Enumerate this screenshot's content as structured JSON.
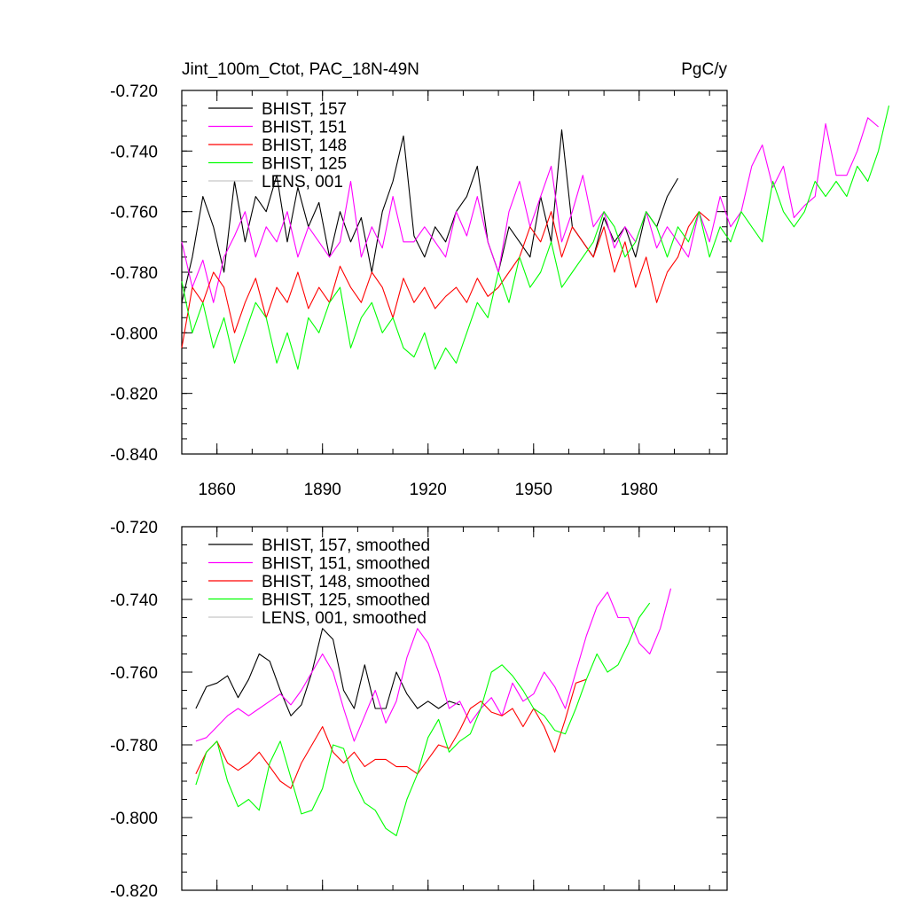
{
  "chart_data": [
    {
      "type": "line",
      "title_left": "Jint_100m_Ctot, PAC_18N-49N",
      "title_right": "PgC/y",
      "xlim": [
        1850,
        2005
      ],
      "ylim": [
        -0.84,
        -0.72
      ],
      "x_ticks": [
        1860,
        1890,
        1920,
        1950,
        1980
      ],
      "y_ticks": [
        -0.84,
        -0.82,
        -0.8,
        -0.78,
        -0.76,
        -0.74,
        -0.72
      ],
      "y_tick_labels": [
        "-0.840",
        "-0.820",
        "-0.800",
        "-0.780",
        "-0.760",
        "-0.740",
        "-0.720"
      ],
      "legend_position": "top-left",
      "series": [
        {
          "name": "BHIST, 157",
          "color": "#000000",
          "x_start": 1850,
          "x_step": 3,
          "values": [
            -0.79,
            -0.775,
            -0.755,
            -0.765,
            -0.78,
            -0.75,
            -0.77,
            -0.755,
            -0.76,
            -0.748,
            -0.77,
            -0.752,
            -0.765,
            -0.757,
            -0.775,
            -0.76,
            -0.77,
            -0.762,
            -0.78,
            -0.76,
            -0.75,
            -0.735,
            -0.768,
            -0.775,
            -0.765,
            -0.77,
            -0.76,
            -0.755,
            -0.745,
            -0.77,
            -0.78,
            -0.765,
            -0.77,
            -0.775,
            -0.755,
            -0.77,
            -0.733,
            -0.765,
            -0.77,
            -0.775,
            -0.762,
            -0.77,
            -0.765,
            -0.775,
            -0.76,
            -0.765,
            -0.755,
            -0.749
          ]
        },
        {
          "name": "BHIST, 151",
          "color": "#ff00ff",
          "x_start": 1850,
          "x_step": 3,
          "values": [
            -0.77,
            -0.785,
            -0.776,
            -0.79,
            -0.775,
            -0.768,
            -0.76,
            -0.775,
            -0.765,
            -0.77,
            -0.76,
            -0.775,
            -0.765,
            -0.77,
            -0.775,
            -0.77,
            -0.75,
            -0.775,
            -0.765,
            -0.772,
            -0.755,
            -0.77,
            -0.77,
            -0.765,
            -0.77,
            -0.775,
            -0.76,
            -0.768,
            -0.755,
            -0.77,
            -0.78,
            -0.76,
            -0.75,
            -0.765,
            -0.755,
            -0.745,
            -0.77,
            -0.76,
            -0.748,
            -0.765,
            -0.76,
            -0.772,
            -0.765,
            -0.77,
            -0.76,
            -0.772,
            -0.765,
            -0.77,
            -0.775,
            -0.76,
            -0.77,
            -0.755,
            -0.765,
            -0.76,
            -0.745,
            -0.738,
            -0.752,
            -0.745,
            -0.762,
            -0.758,
            -0.755,
            -0.731,
            -0.748,
            -0.748,
            -0.74,
            -0.729,
            -0.732
          ]
        },
        {
          "name": "BHIST, 148",
          "color": "#ff0000",
          "x_start": 1850,
          "x_step": 3,
          "values": [
            -0.805,
            -0.785,
            -0.79,
            -0.78,
            -0.785,
            -0.8,
            -0.79,
            -0.782,
            -0.795,
            -0.785,
            -0.79,
            -0.78,
            -0.792,
            -0.785,
            -0.79,
            -0.778,
            -0.785,
            -0.79,
            -0.78,
            -0.785,
            -0.795,
            -0.782,
            -0.79,
            -0.785,
            -0.792,
            -0.788,
            -0.785,
            -0.79,
            -0.782,
            -0.788,
            -0.785,
            -0.78,
            -0.775,
            -0.765,
            -0.77,
            -0.76,
            -0.775,
            -0.765,
            -0.77,
            -0.775,
            -0.765,
            -0.78,
            -0.77,
            -0.785,
            -0.775,
            -0.79,
            -0.78,
            -0.775,
            -0.765,
            -0.76,
            -0.763
          ]
        },
        {
          "name": "BHIST, 125",
          "color": "#00ff00",
          "x_start": 1850,
          "x_step": 3,
          "values": [
            -0.783,
            -0.8,
            -0.79,
            -0.805,
            -0.795,
            -0.81,
            -0.8,
            -0.79,
            -0.795,
            -0.81,
            -0.8,
            -0.812,
            -0.795,
            -0.8,
            -0.79,
            -0.785,
            -0.805,
            -0.795,
            -0.79,
            -0.8,
            -0.795,
            -0.805,
            -0.808,
            -0.8,
            -0.812,
            -0.805,
            -0.81,
            -0.8,
            -0.79,
            -0.795,
            -0.78,
            -0.79,
            -0.775,
            -0.785,
            -0.78,
            -0.77,
            -0.785,
            -0.78,
            -0.775,
            -0.77,
            -0.76,
            -0.765,
            -0.775,
            -0.77,
            -0.76,
            -0.765,
            -0.775,
            -0.765,
            -0.77,
            -0.76,
            -0.775,
            -0.765,
            -0.77,
            -0.76,
            -0.765,
            -0.77,
            -0.75,
            -0.76,
            -0.765,
            -0.76,
            -0.75,
            -0.755,
            -0.75,
            -0.755,
            -0.745,
            -0.75,
            -0.74,
            -0.725
          ]
        },
        {
          "name": "LENS, 001",
          "color": "#c8c8c8",
          "x_start": 1850,
          "x_step": 3,
          "values": []
        }
      ]
    },
    {
      "type": "line",
      "xlim": [
        1850,
        2005
      ],
      "ylim": [
        -0.82,
        -0.72
      ],
      "x_ticks": [
        1860,
        1890,
        1920,
        1950,
        1980
      ],
      "y_ticks": [
        -0.82,
        -0.8,
        -0.78,
        -0.76,
        -0.74,
        -0.72
      ],
      "y_tick_labels": [
        "-0.820",
        "-0.800",
        "-0.780",
        "-0.760",
        "-0.740",
        "-0.720"
      ],
      "legend_position": "top-left",
      "series": [
        {
          "name": "BHIST, 157, smoothed",
          "color": "#000000",
          "x_start": 1854,
          "x_step": 3,
          "values": [
            -0.77,
            -0.764,
            -0.763,
            -0.761,
            -0.767,
            -0.762,
            -0.755,
            -0.757,
            -0.765,
            -0.772,
            -0.769,
            -0.76,
            -0.748,
            -0.751,
            -0.765,
            -0.77,
            -0.758,
            -0.77,
            -0.77,
            -0.76,
            -0.766,
            -0.77,
            -0.768,
            -0.77,
            -0.768,
            -0.769
          ]
        },
        {
          "name": "BHIST, 151, smoothed",
          "color": "#ff00ff",
          "x_start": 1854,
          "x_step": 3,
          "values": [
            -0.779,
            -0.778,
            -0.775,
            -0.772,
            -0.77,
            -0.772,
            -0.77,
            -0.768,
            -0.766,
            -0.769,
            -0.765,
            -0.76,
            -0.755,
            -0.76,
            -0.77,
            -0.779,
            -0.772,
            -0.765,
            -0.774,
            -0.768,
            -0.756,
            -0.748,
            -0.752,
            -0.76,
            -0.77,
            -0.768,
            -0.774,
            -0.77,
            -0.767,
            -0.772,
            -0.763,
            -0.768,
            -0.766,
            -0.76,
            -0.764,
            -0.77,
            -0.76,
            -0.75,
            -0.742,
            -0.738,
            -0.745,
            -0.745,
            -0.752,
            -0.755,
            -0.748,
            -0.737
          ]
        },
        {
          "name": "BHIST, 148, smoothed",
          "color": "#ff0000",
          "x_start": 1854,
          "x_step": 3,
          "values": [
            -0.788,
            -0.782,
            -0.779,
            -0.785,
            -0.787,
            -0.785,
            -0.782,
            -0.786,
            -0.79,
            -0.792,
            -0.785,
            -0.78,
            -0.775,
            -0.782,
            -0.785,
            -0.782,
            -0.786,
            -0.784,
            -0.784,
            -0.786,
            -0.786,
            -0.788,
            -0.784,
            -0.78,
            -0.781,
            -0.776,
            -0.77,
            -0.768,
            -0.771,
            -0.772,
            -0.77,
            -0.775,
            -0.77,
            -0.775,
            -0.782,
            -0.773,
            -0.763,
            -0.762
          ]
        },
        {
          "name": "BHIST, 125, smoothed",
          "color": "#00ff00",
          "x_start": 1854,
          "x_step": 3,
          "values": [
            -0.791,
            -0.782,
            -0.779,
            -0.79,
            -0.797,
            -0.795,
            -0.798,
            -0.785,
            -0.779,
            -0.789,
            -0.799,
            -0.798,
            -0.792,
            -0.78,
            -0.781,
            -0.79,
            -0.796,
            -0.798,
            -0.803,
            -0.805,
            -0.795,
            -0.788,
            -0.778,
            -0.773,
            -0.782,
            -0.779,
            -0.777,
            -0.77,
            -0.76,
            -0.758,
            -0.761,
            -0.765,
            -0.77,
            -0.772,
            -0.776,
            -0.777,
            -0.77,
            -0.762,
            -0.755,
            -0.76,
            -0.758,
            -0.752,
            -0.745,
            -0.741
          ]
        },
        {
          "name": "LENS, 001, smoothed",
          "color": "#c8c8c8",
          "x_start": 1854,
          "x_step": 3,
          "values": []
        }
      ]
    }
  ]
}
